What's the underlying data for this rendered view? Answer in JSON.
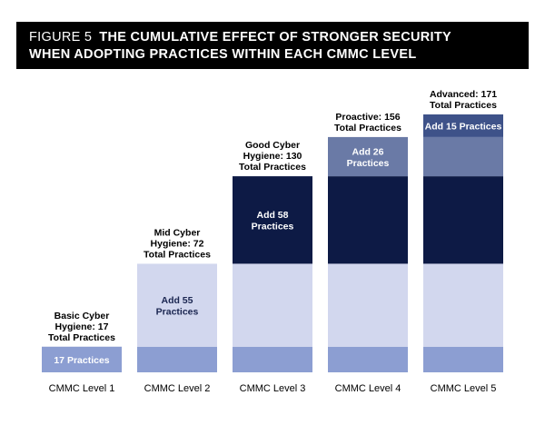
{
  "figure_label": "FIGURE 5",
  "title_line1": "THE CUMULATIVE EFFECT OF STRONGER SECURITY",
  "title_line2": "WHEN ADOPTING PRACTICES WITHIN EACH CMMC LEVEL",
  "colors": {
    "title_background": "#000000",
    "basic": "#8c9ed2",
    "mid": "#d2d7ee",
    "good": "#0d1a45",
    "proactive": "#6a7aa6",
    "advanced": "#3e5289",
    "mid_label_text": "#1a2550",
    "light_label_text": "#ffffff"
  },
  "chart_data": {
    "type": "bar",
    "stacked": true,
    "categories": [
      "CMMC Level 1",
      "CMMC Level 2",
      "CMMC Level 3",
      "CMMC Level 4",
      "CMMC Level 5"
    ],
    "series": [
      {
        "values": [
          17,
          17,
          17,
          17,
          17
        ],
        "segment_labels": [
          "17  Practices",
          "",
          "",
          "",
          ""
        ]
      },
      {
        "values": [
          0,
          55,
          55,
          55,
          55
        ],
        "segment_labels": [
          "",
          "Add 55\nPractices",
          "",
          "",
          ""
        ]
      },
      {
        "values": [
          0,
          0,
          58,
          58,
          58
        ],
        "segment_labels": [
          "",
          "",
          "Add 58\nPractices",
          "",
          ""
        ]
      },
      {
        "values": [
          0,
          0,
          0,
          26,
          26
        ],
        "segment_labels": [
          "",
          "",
          "",
          "Add 26\nPractices",
          ""
        ]
      },
      {
        "values": [
          0,
          0,
          0,
          0,
          15
        ],
        "segment_labels": [
          "",
          "",
          "",
          "",
          "Add 15 Practices"
        ]
      }
    ],
    "totals": [
      17,
      72,
      130,
      156,
      171
    ],
    "top_labels": [
      "Basic Cyber\nHygiene: 17\nTotal Practices",
      "Mid Cyber\nHygiene: 72\nTotal Practices",
      "Good Cyber\nHygiene: 130\nTotal Practices",
      "Proactive: 156\nTotal Practices",
      "Advanced: 171\nTotal Practices"
    ],
    "ylim": [
      0,
      171
    ],
    "grid": false
  }
}
